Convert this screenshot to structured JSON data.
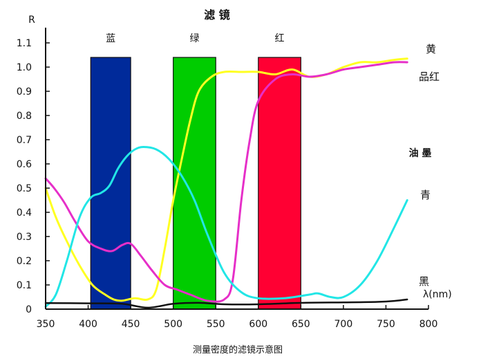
{
  "chart_data": {
    "type": "line",
    "title": "滤 镜",
    "caption": "测量密度的滤镜示意图",
    "ylabel": "R",
    "xlabel": "λ(nm)",
    "xlim": [
      350,
      800
    ],
    "ylim": [
      0,
      1.1
    ],
    "x_ticks": [
      "350",
      "400",
      "450",
      "500",
      "550",
      "600",
      "650",
      "700",
      "750",
      "800"
    ],
    "y_ticks": [
      "0",
      "0.1",
      "0.2",
      "0.3",
      "0.4",
      "0.5",
      "0.6",
      "0.7",
      "0.8",
      "0.9",
      "1.0",
      "1.1"
    ],
    "grid": false,
    "section_label": "油 墨",
    "filters": [
      {
        "name": "蓝",
        "x_range": [
          403,
          450
        ],
        "top": 1.04,
        "color": "#002a9a"
      },
      {
        "name": "绿",
        "x_range": [
          500,
          550
        ],
        "top": 1.04,
        "color": "#00cc00"
      },
      {
        "name": "红",
        "x_range": [
          600,
          650
        ],
        "top": 1.04,
        "color": "#ff0033"
      }
    ],
    "series": [
      {
        "name": "黄",
        "color": "#ffff22",
        "x": [
          350,
          362,
          375,
          390,
          405,
          420,
          430,
          440,
          455,
          470,
          480,
          490,
          500,
          510,
          520,
          530,
          545,
          560,
          580,
          600,
          620,
          640,
          660,
          680,
          700,
          720,
          740,
          760,
          775
        ],
        "y": [
          0.5,
          0.38,
          0.28,
          0.18,
          0.1,
          0.06,
          0.04,
          0.035,
          0.045,
          0.04,
          0.08,
          0.25,
          0.45,
          0.62,
          0.78,
          0.9,
          0.96,
          0.98,
          0.98,
          0.98,
          0.97,
          0.99,
          0.96,
          0.97,
          1.0,
          1.02,
          1.02,
          1.03,
          1.035
        ]
      },
      {
        "name": "品红",
        "color": "#e62fc8",
        "x": [
          350,
          360,
          372,
          385,
          400,
          415,
          428,
          440,
          450,
          462,
          475,
          490,
          505,
          520,
          540,
          560,
          570,
          580,
          590,
          600,
          620,
          640,
          660,
          680,
          700,
          720,
          740,
          760,
          775
        ],
        "y": [
          0.54,
          0.5,
          0.44,
          0.36,
          0.28,
          0.25,
          0.24,
          0.265,
          0.27,
          0.22,
          0.16,
          0.1,
          0.08,
          0.06,
          0.035,
          0.04,
          0.12,
          0.45,
          0.7,
          0.86,
          0.95,
          0.97,
          0.96,
          0.97,
          0.99,
          1.0,
          1.01,
          1.02,
          1.02
        ]
      },
      {
        "name": "青",
        "color": "#22e6e6",
        "x": [
          350,
          362,
          375,
          390,
          403,
          415,
          425,
          435,
          445,
          455,
          465,
          480,
          495,
          510,
          525,
          540,
          560,
          580,
          600,
          630,
          660,
          670,
          685,
          700,
          720,
          740,
          760,
          775
        ],
        "y": [
          0.01,
          0.06,
          0.2,
          0.38,
          0.46,
          0.48,
          0.51,
          0.58,
          0.63,
          0.66,
          0.67,
          0.66,
          0.62,
          0.55,
          0.45,
          0.31,
          0.15,
          0.07,
          0.045,
          0.045,
          0.06,
          0.065,
          0.05,
          0.05,
          0.1,
          0.2,
          0.34,
          0.45
        ]
      },
      {
        "name": "黑",
        "color": "#111111",
        "x": [
          350,
          400,
          440,
          470,
          500,
          530,
          560,
          600,
          650,
          700,
          740,
          760,
          775
        ],
        "y": [
          0.025,
          0.024,
          0.022,
          0.006,
          0.022,
          0.026,
          0.02,
          0.02,
          0.026,
          0.028,
          0.03,
          0.034,
          0.04
        ]
      }
    ]
  }
}
